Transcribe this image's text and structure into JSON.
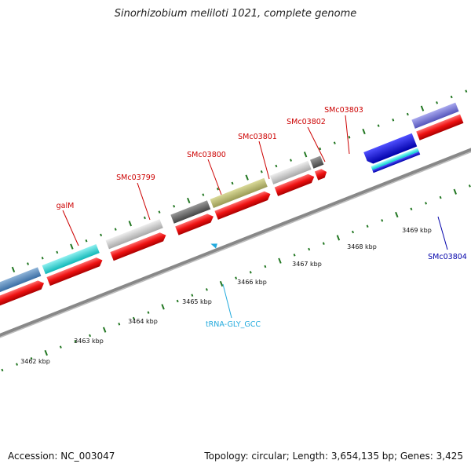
{
  "title": "Sinorhizobium meliloti 1021, complete genome",
  "footer": {
    "accession": "Accession: NC_003047",
    "genome_info": "Topology: circular; Length: 3,654,135 bp; Genes: 3,425"
  },
  "scale_labels": [
    "3462 kbp",
    "3463 kbp",
    "3464 kbp",
    "3465 kbp",
    "3466 kbp",
    "3467 kbp",
    "3468 kbp",
    "3469 kbp"
  ],
  "gene_labels": [
    {
      "text": "galM",
      "color": "#cc0000"
    },
    {
      "text": "SMc03799",
      "color": "#cc0000"
    },
    {
      "text": "SMc03800",
      "color": "#cc0000"
    },
    {
      "text": "SMc03801",
      "color": "#cc0000"
    },
    {
      "text": "SMc03802",
      "color": "#cc0000"
    },
    {
      "text": "SMc03803",
      "color": "#cc0000"
    },
    {
      "text": "tRNA-GLY_GCC",
      "color": "#22aadd"
    },
    {
      "text": "SMc03804",
      "color": "#0000aa"
    }
  ],
  "colors": {
    "cds": "#ee1111",
    "backbone": "#888888",
    "tick": "#227722"
  }
}
